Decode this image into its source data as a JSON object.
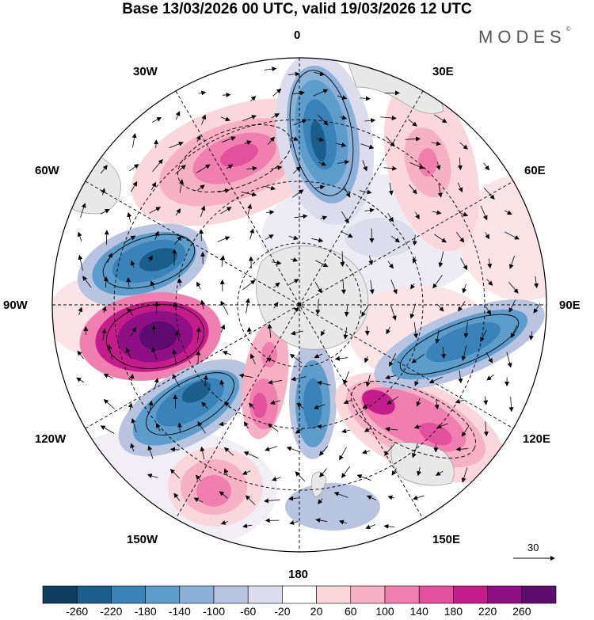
{
  "title": "Base 13/03/2026 00 UTC, valid 19/03/2026 12 UTC",
  "logo": {
    "text": "MODES",
    "mark": "©"
  },
  "longitude_labels": {
    "lon_0": "0",
    "lon_30e": "30E",
    "lon_60e": "60E",
    "lon_90e": "90E",
    "lon_120e": "120E",
    "lon_150e": "150E",
    "lon_180": "180",
    "lon_150w": "150W",
    "lon_120w": "120W",
    "lon_90w": "90W",
    "lon_60w": "60W",
    "lon_30w": "30W"
  },
  "colorbar": {
    "ticks": [
      "-260",
      "-220",
      "-180",
      "-140",
      "-100",
      "-60",
      "-20",
      "20",
      "60",
      "100",
      "140",
      "180",
      "220",
      "260"
    ],
    "colors": [
      "#0f3e5e",
      "#1a5e8c",
      "#3a83b8",
      "#5c9dcb",
      "#8db2d9",
      "#b8c4e0",
      "#dcdcec",
      "#ffffff",
      "#fad7da",
      "#f6b1c4",
      "#f07fb0",
      "#e2509e",
      "#c41d8b",
      "#8f0f84",
      "#5e0c70"
    ]
  },
  "vector_reference": {
    "label": "30"
  }
}
